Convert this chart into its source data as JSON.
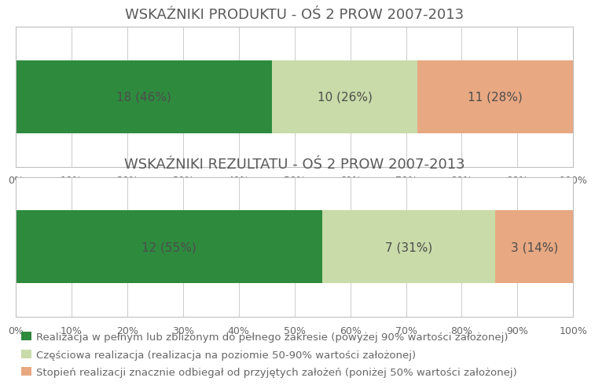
{
  "chart1_title": "WSKAŹNIKI PRODUKTU - OŚ 2 PROW 2007-2013",
  "chart2_title": "WSKAŹNIKI REZULTATU - OŚ 2 PROW 2007-2013",
  "chart1_values": [
    46,
    26,
    28
  ],
  "chart1_labels": [
    "18 (46%)",
    "10 (26%)",
    "11 (28%)"
  ],
  "chart2_values": [
    55,
    31,
    14
  ],
  "chart2_labels": [
    "12 (55%)",
    "7 (31%)",
    "3 (14%)"
  ],
  "colors": [
    "#2e8b3e",
    "#c8dba8",
    "#e8a882"
  ],
  "legend_labels": [
    "Realizacja w pełnym lub zbliżonym do pełnego zakresie (powyżej 90% wartości założonej)",
    "Częściowa realizacja (realizacja na poziomie 50-90% wartości założonej)",
    "Stopień realizacji znacznie odbiegał od przyjętych założeń (poniżej 50% wartości założonej)"
  ],
  "xtick_labels": [
    "0%",
    "10%",
    "20%",
    "30%",
    "40%",
    "50%",
    "60%",
    "70%",
    "80%",
    "90%",
    "100%"
  ],
  "xtick_values": [
    0,
    10,
    20,
    30,
    40,
    50,
    60,
    70,
    80,
    90,
    100
  ],
  "bar_height": 0.52,
  "title_fontsize": 13,
  "label_fontsize": 11,
  "legend_fontsize": 9.5,
  "tick_fontsize": 9,
  "title_color": "#5a5a5a",
  "label_color": "#4d4d4d",
  "tick_color": "#666666",
  "background_color": "#ffffff",
  "grid_color": "#cccccc",
  "border_color": "#c0c0c0"
}
